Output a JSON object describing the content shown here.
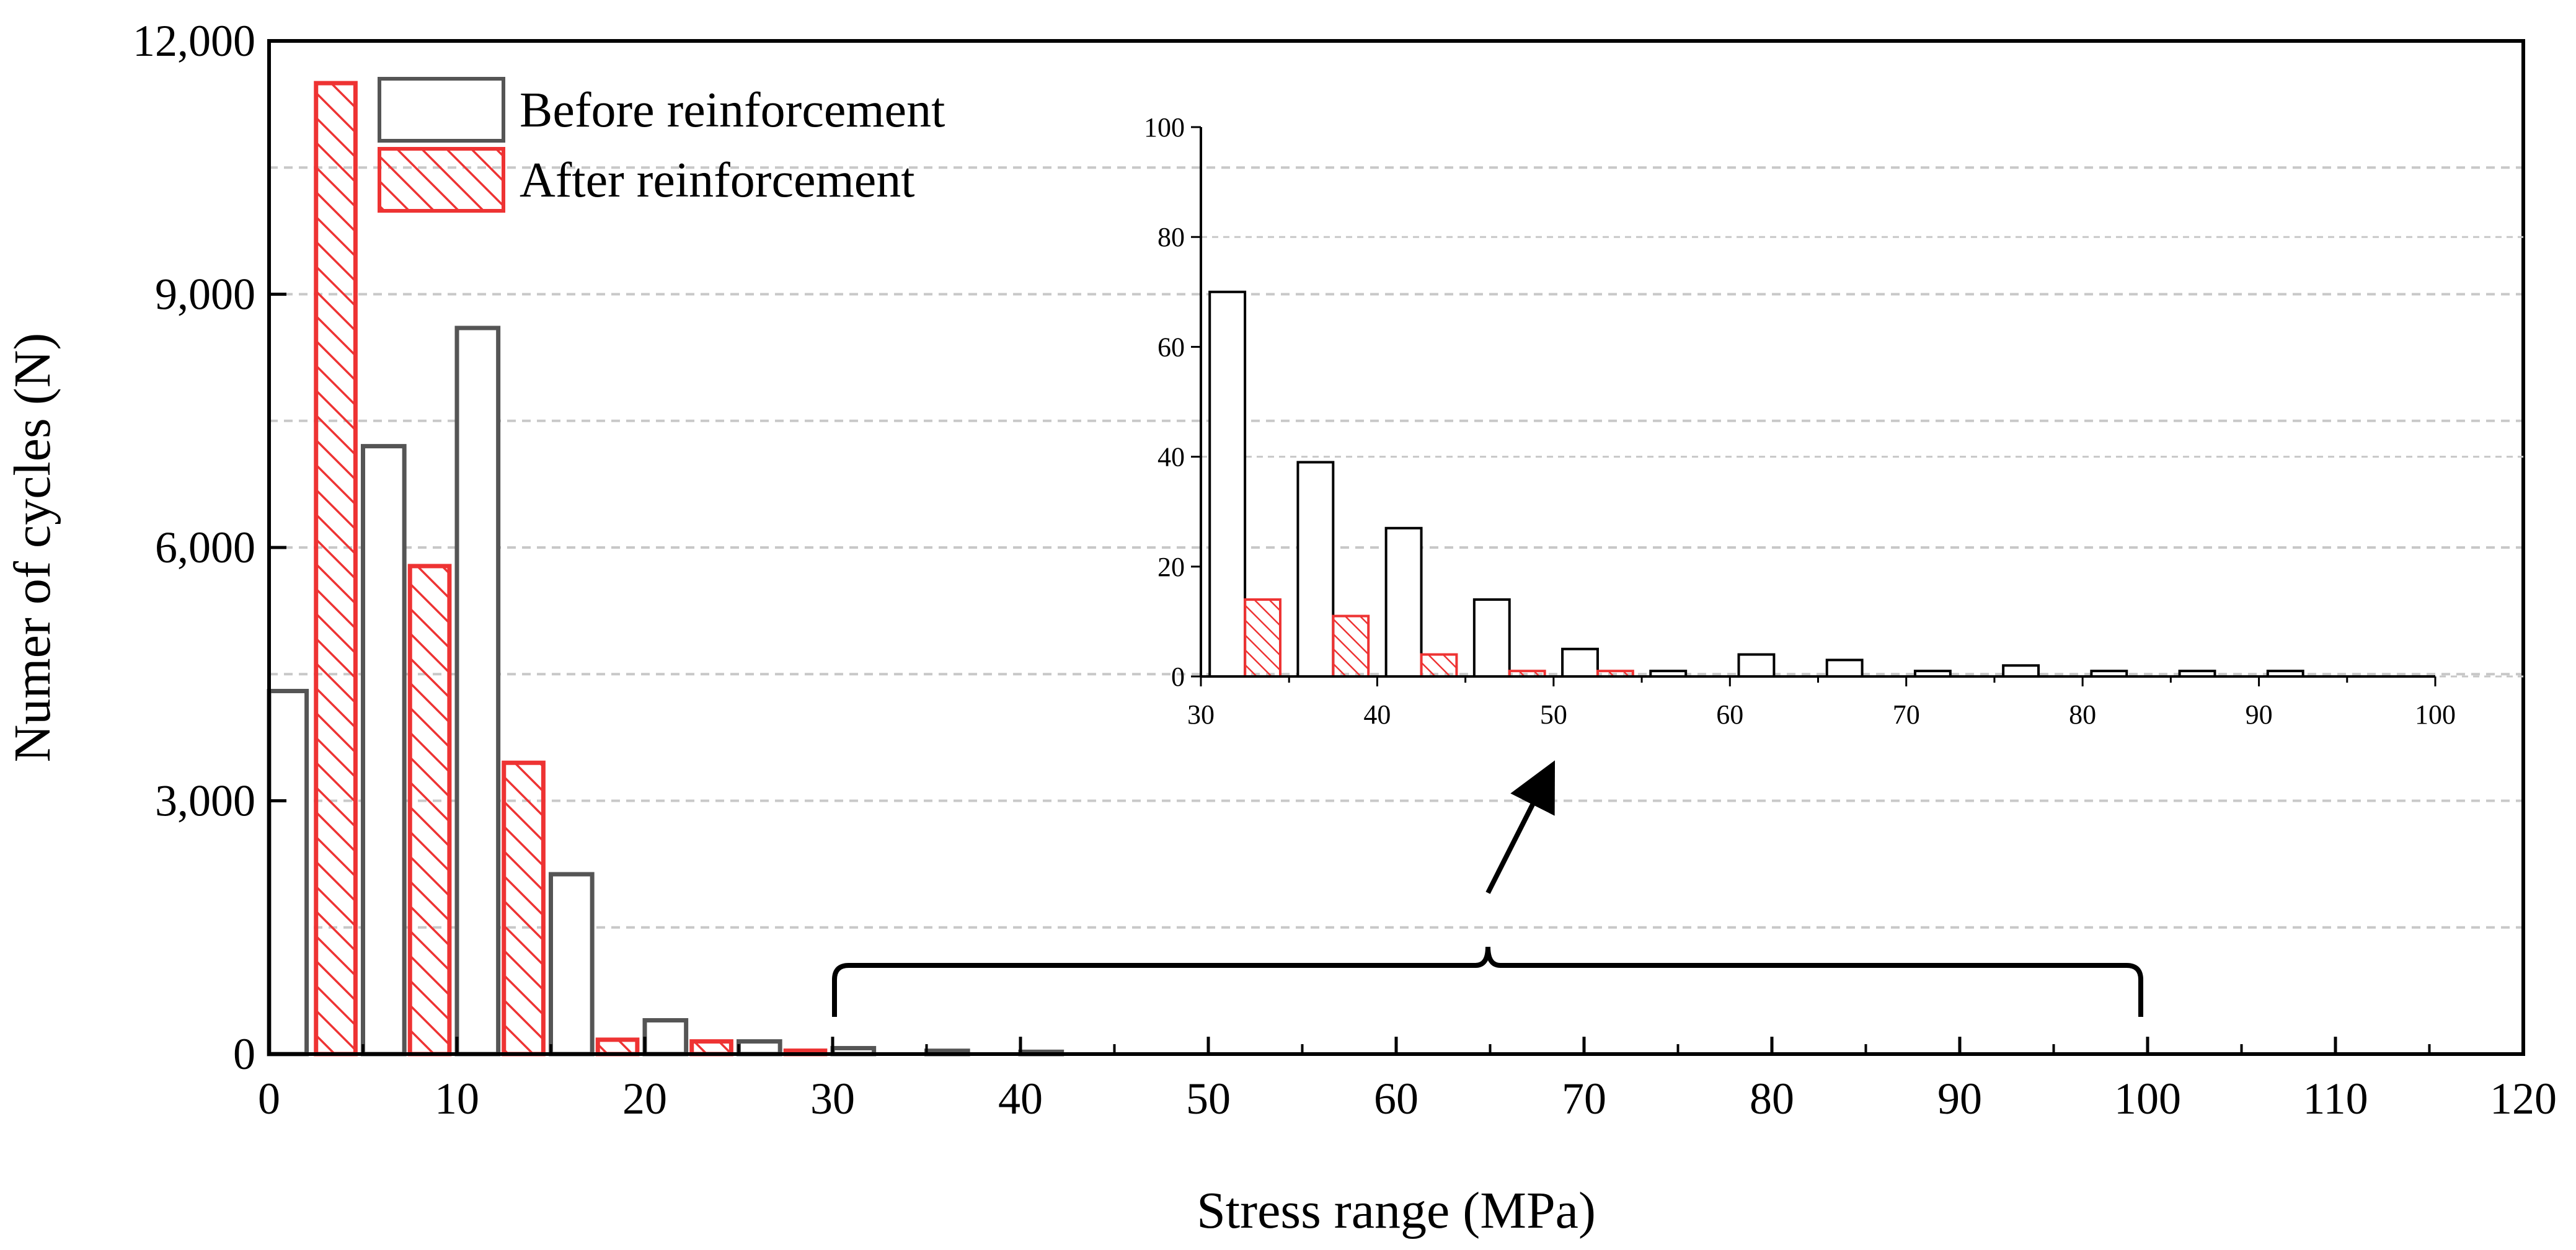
{
  "chart_data": [
    {
      "type": "bar",
      "subplot": "main",
      "xlabel": "Stress range (MPa)",
      "ylabel": "Numer of cycles (N)",
      "xlim": [
        0,
        120
      ],
      "ylim": [
        0,
        12000
      ],
      "x_ticks": [
        "0",
        "10",
        "20",
        "30",
        "40",
        "50",
        "60",
        "70",
        "80",
        "90",
        "100",
        "110",
        "120"
      ],
      "y_ticks": [
        "0",
        "3,000",
        "6,000",
        "9,000",
        "12,000"
      ],
      "grid": "horizontal dashed",
      "legend": {
        "position": "top-left",
        "entries": [
          "Before reinforcement",
          "After reinforcement"
        ]
      },
      "series": [
        {
          "name": "Before reinforcement",
          "color": "#555555",
          "hatch": false,
          "bins": [
            [
              0,
              2
            ],
            [
              5,
              7.2
            ],
            [
              10,
              12.2
            ],
            [
              15,
              17.2
            ],
            [
              20,
              22.2
            ],
            [
              25,
              27.2
            ],
            [
              30,
              32.2
            ],
            [
              35,
              37.2
            ],
            [
              40,
              42.2
            ]
          ],
          "values": [
            4300,
            7200,
            8600,
            2130,
            400,
            150,
            70,
            39,
            27
          ]
        },
        {
          "name": "After reinforcement",
          "color": "#ee3333",
          "hatch": true,
          "bins": [
            [
              2.5,
              4.6
            ],
            [
              7.5,
              9.6
            ],
            [
              12.5,
              14.6
            ],
            [
              17.5,
              19.6
            ],
            [
              22.5,
              24.6
            ],
            [
              27.5,
              29.6
            ]
          ],
          "values": [
            11500,
            5780,
            3450,
            170,
            150,
            40
          ]
        }
      ],
      "annotation": {
        "type": "brace",
        "x_range": [
          30,
          100
        ],
        "points_to": "inset"
      }
    },
    {
      "type": "bar",
      "subplot": "inset",
      "xlim": [
        30,
        100
      ],
      "ylim": [
        0,
        100
      ],
      "x_ticks": [
        "30",
        "40",
        "50",
        "60",
        "70",
        "80",
        "90",
        "100"
      ],
      "y_ticks": [
        "0",
        "20",
        "40",
        "60",
        "80",
        "100"
      ],
      "grid": "horizontal dashed",
      "series": [
        {
          "name": "Before reinforcement",
          "color": "#000000",
          "hatch": false,
          "bins": [
            [
              30.5,
              32.5
            ],
            [
              35.5,
              37.5
            ],
            [
              40.5,
              42.5
            ],
            [
              45.5,
              47.5
            ],
            [
              50.5,
              52.5
            ],
            [
              55.5,
              57.5
            ],
            [
              60.5,
              62.5
            ],
            [
              65.5,
              67.5
            ],
            [
              70.5,
              72.5
            ],
            [
              75.5,
              77.5
            ],
            [
              80.5,
              82.5
            ],
            [
              85.5,
              87.5
            ],
            [
              90.5,
              92.5
            ]
          ],
          "values": [
            70,
            39,
            27,
            14,
            5,
            1,
            4,
            3,
            1,
            2,
            1,
            1,
            1
          ]
        },
        {
          "name": "After reinforcement",
          "color": "#ee3333",
          "hatch": true,
          "bins": [
            [
              32.5,
              34.5
            ],
            [
              37.5,
              39.5
            ],
            [
              42.5,
              44.5
            ],
            [
              47.5,
              49.5
            ],
            [
              52.5,
              54.5
            ]
          ],
          "values": [
            14,
            11,
            4,
            1,
            1
          ]
        }
      ]
    }
  ]
}
